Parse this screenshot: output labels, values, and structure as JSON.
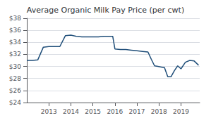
{
  "chart_data": {
    "type": "line",
    "title": "Average Organic Milk Pay Price (per cwt)",
    "color": "#1f4e79",
    "x": [
      2012.0,
      2012.25,
      2012.5,
      2012.75,
      2013.0,
      2013.25,
      2013.5,
      2013.75,
      2014.0,
      2014.25,
      2014.5,
      2014.75,
      2015.0,
      2015.25,
      2015.5,
      2015.75,
      2015.9,
      2016.0,
      2016.25,
      2016.5,
      2016.75,
      2017.0,
      2017.25,
      2017.5,
      2017.65,
      2017.8,
      2017.95,
      2018.1,
      2018.25,
      2018.4,
      2018.55,
      2018.7,
      2018.85,
      2019.0,
      2019.2,
      2019.4,
      2019.6,
      2019.8
    ],
    "values": [
      31.0,
      31.0,
      31.1,
      33.2,
      33.3,
      33.3,
      33.3,
      35.1,
      35.2,
      35.0,
      34.9,
      34.9,
      34.9,
      34.9,
      35.0,
      35.0,
      35.0,
      32.9,
      32.8,
      32.8,
      32.7,
      32.6,
      32.5,
      32.4,
      31.2,
      30.1,
      30.0,
      29.9,
      29.8,
      28.3,
      28.3,
      29.3,
      30.1,
      29.6,
      30.7,
      31.0,
      30.9,
      30.2
    ],
    "xlim": [
      2012,
      2019.85
    ],
    "xticks": [
      2013,
      2014,
      2015,
      2016,
      2017,
      2018,
      2019
    ],
    "ylim": [
      24,
      38
    ],
    "yticks": [
      {
        "value": 24,
        "label": "$24"
      },
      {
        "value": 26,
        "label": "$26"
      },
      {
        "value": 28,
        "label": "$28"
      },
      {
        "value": 30,
        "label": "$30"
      },
      {
        "value": 32,
        "label": "$32"
      },
      {
        "value": 34,
        "label": "$34"
      },
      {
        "value": 36,
        "label": "$36"
      },
      {
        "value": 38,
        "label": "$38"
      }
    ],
    "grid": true
  }
}
